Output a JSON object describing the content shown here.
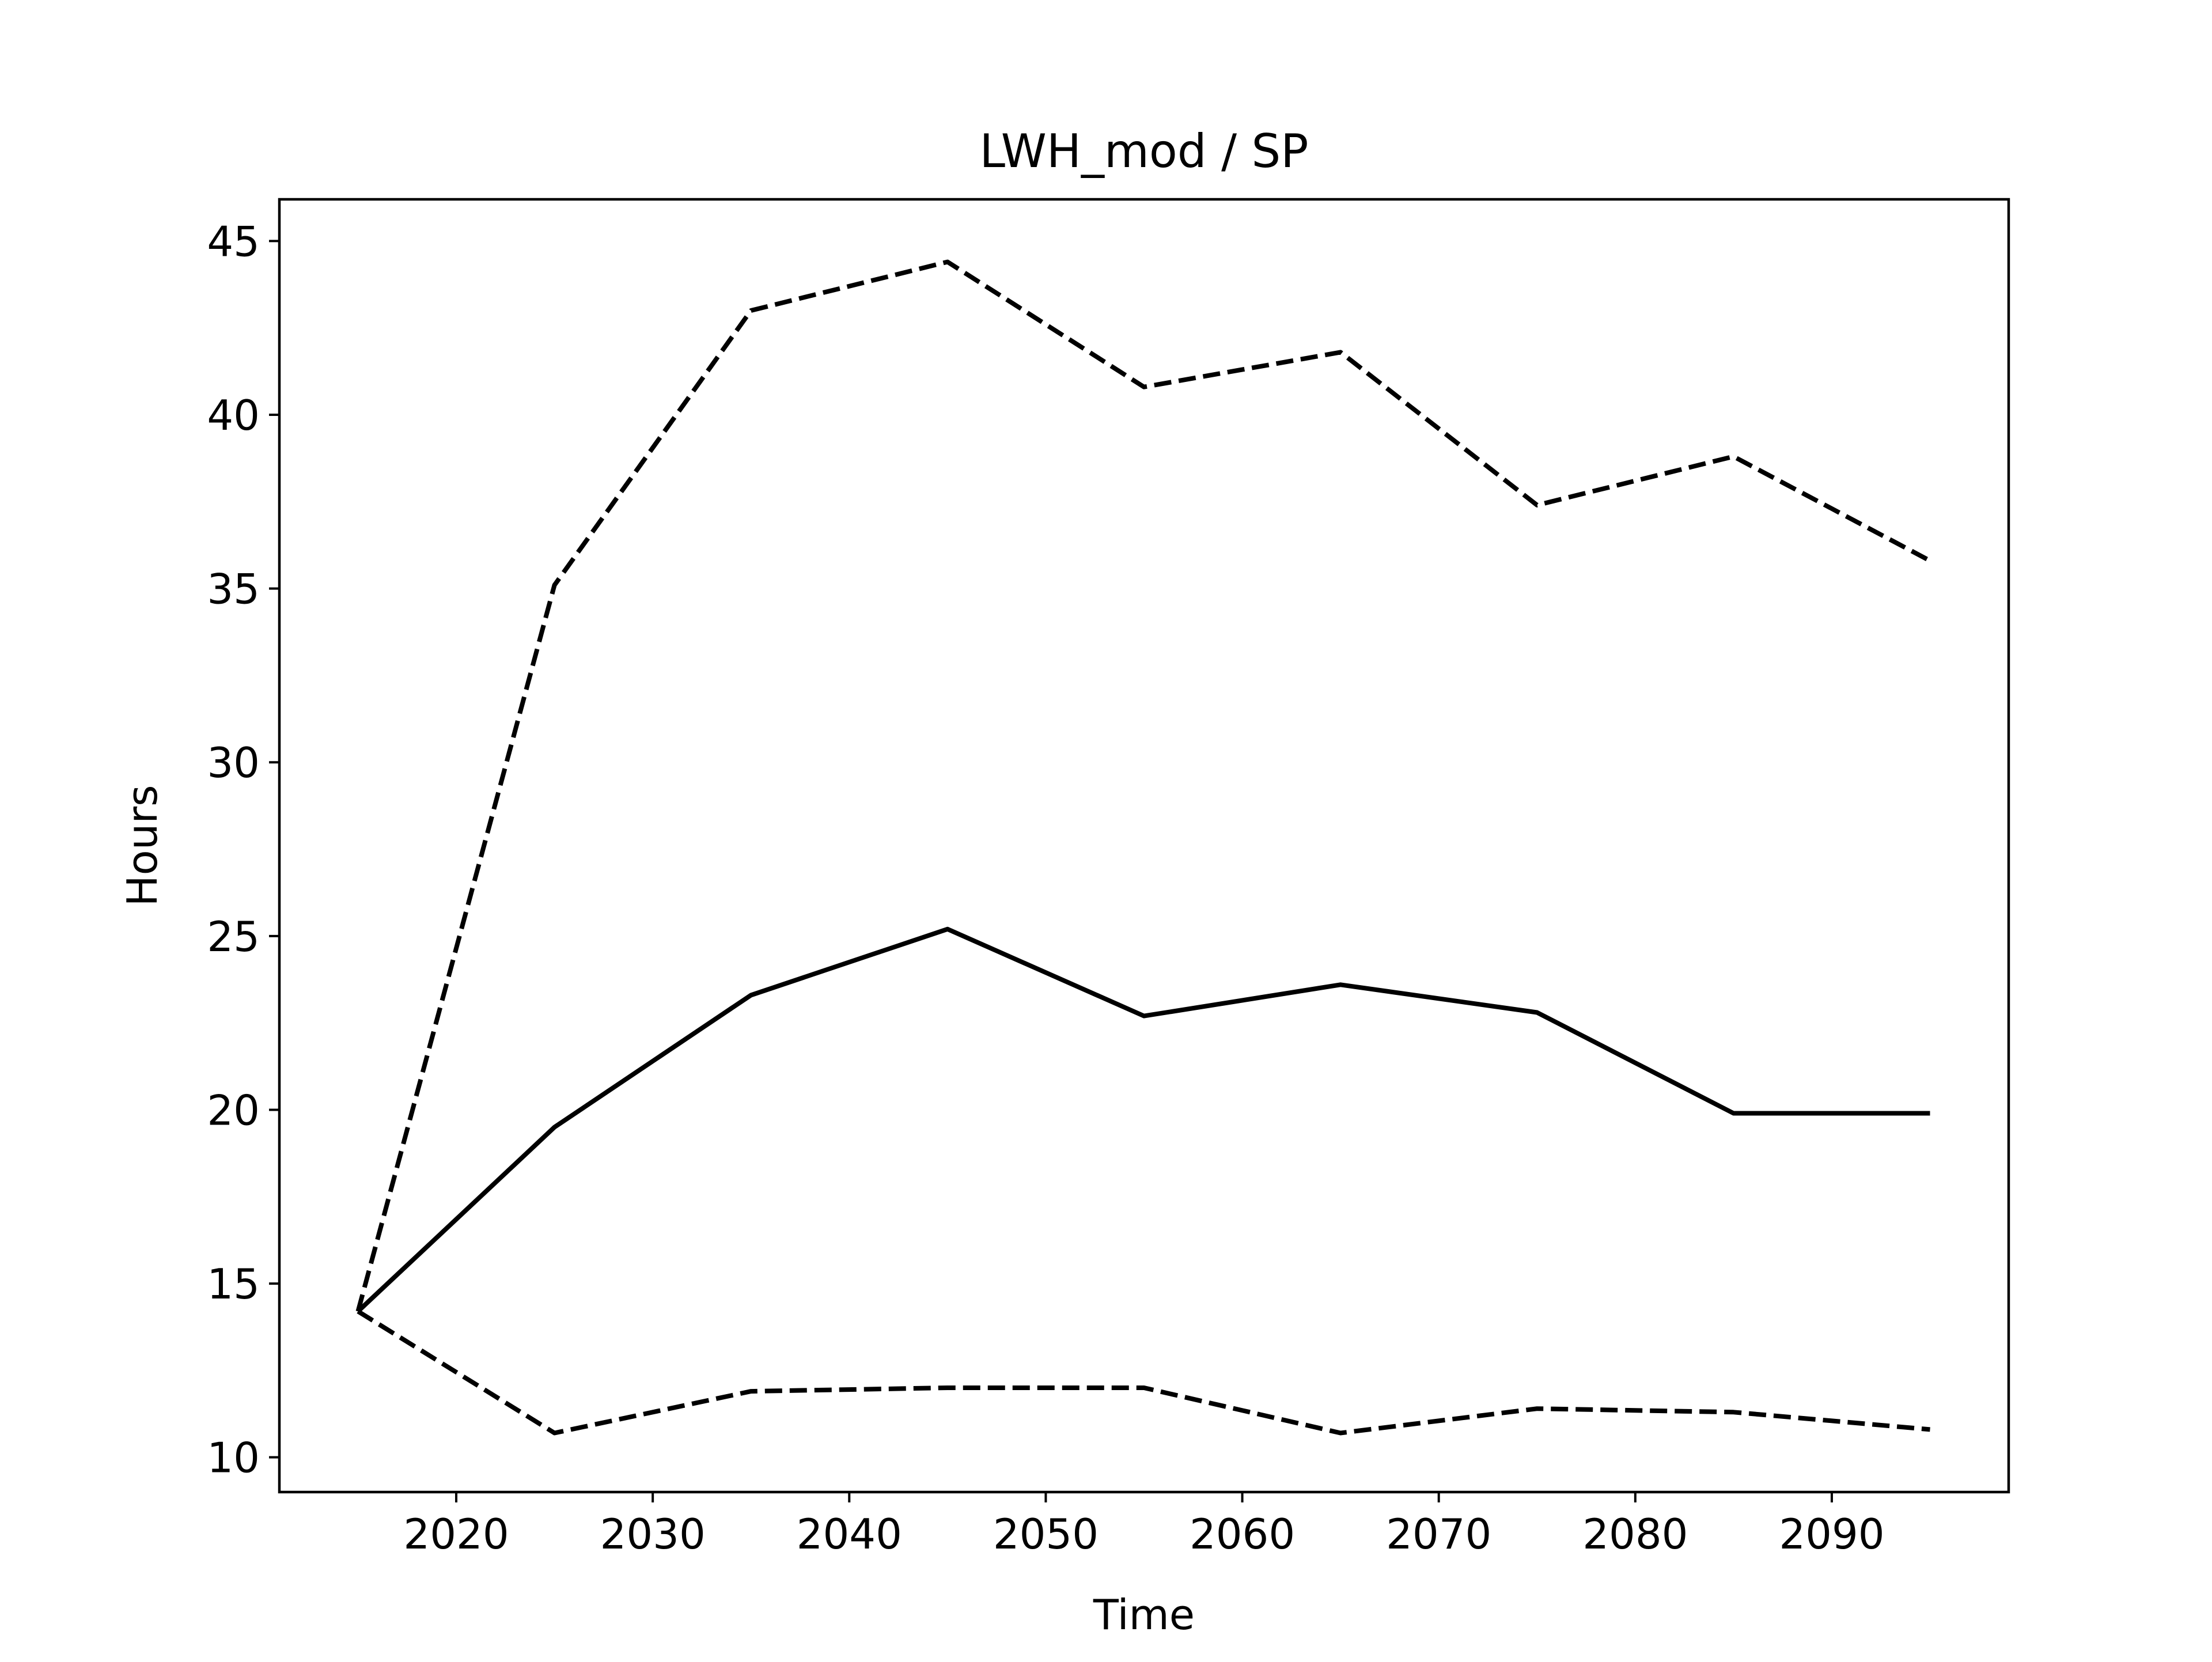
{
  "chart_data": {
    "type": "line",
    "title": "LWH_mod / SP",
    "xlabel": "Time",
    "ylabel": "Hours",
    "x": [
      2015,
      2025,
      2035,
      2045,
      2055,
      2065,
      2075,
      2085,
      2095
    ],
    "xlim": [
      2011,
      2099
    ],
    "ylim": [
      9.0,
      46.2
    ],
    "xticks": [
      "2020",
      "2030",
      "2040",
      "2050",
      "2060",
      "2070",
      "2080",
      "2090"
    ],
    "yticks": [
      "10",
      "15",
      "20",
      "25",
      "30",
      "35",
      "40",
      "45"
    ],
    "grid": false,
    "series": [
      {
        "style": "solid",
        "color": "#000000",
        "values": [
          14.2,
          19.5,
          23.3,
          25.2,
          22.7,
          23.6,
          22.8,
          19.9,
          19.9
        ]
      },
      {
        "style": "dashed",
        "color": "#000000",
        "values": [
          14.2,
          35.1,
          43.0,
          44.4,
          40.8,
          41.8,
          37.4,
          38.8,
          35.8
        ]
      },
      {
        "style": "dashed",
        "color": "#000000",
        "values": [
          14.2,
          10.7,
          11.9,
          12.0,
          12.0,
          10.7,
          11.4,
          11.3,
          10.8
        ]
      }
    ]
  }
}
